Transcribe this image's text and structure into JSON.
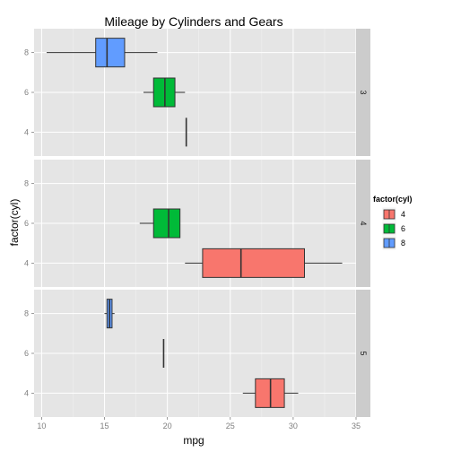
{
  "chart_data": {
    "type": "boxplot",
    "title": "Mileage by Cylinders and Gears",
    "xlabel": "mpg",
    "ylabel": "factor(cyl)",
    "xlim": [
      9.4,
      35
    ],
    "xticks": [
      10,
      15,
      20,
      25,
      30,
      35
    ],
    "categories": [
      "4",
      "6",
      "8"
    ],
    "grid": true,
    "legend": {
      "title": "factor(cyl)",
      "position": "right",
      "items": [
        {
          "label": "4",
          "color": "#F8766D"
        },
        {
          "label": "6",
          "color": "#00BA38"
        },
        {
          "label": "8",
          "color": "#619CFF"
        }
      ]
    },
    "facets": [
      {
        "label": "3",
        "boxes": [
          {
            "cyl": "8",
            "min": 10.4,
            "q1": 14.3,
            "median": 15.2,
            "q3": 16.6,
            "max": 19.2
          },
          {
            "cyl": "6",
            "min": 18.1,
            "q1": 18.9,
            "median": 19.8,
            "q3": 20.6,
            "max": 21.4
          },
          {
            "cyl": "4",
            "min": 21.5,
            "q1": 21.5,
            "median": 21.5,
            "q3": 21.5,
            "max": 21.5
          }
        ]
      },
      {
        "label": "4",
        "boxes": [
          {
            "cyl": "6",
            "min": 17.8,
            "q1": 18.9,
            "median": 20.1,
            "q3": 21.0,
            "max": 21.0
          },
          {
            "cyl": "4",
            "min": 21.4,
            "q1": 22.8,
            "median": 25.85,
            "q3": 30.9,
            "max": 33.9
          }
        ]
      },
      {
        "label": "5",
        "boxes": [
          {
            "cyl": "8",
            "min": 15.0,
            "q1": 15.2,
            "median": 15.4,
            "q3": 15.6,
            "max": 15.8
          },
          {
            "cyl": "6",
            "min": 19.7,
            "q1": 19.7,
            "median": 19.7,
            "q3": 19.7,
            "max": 19.7
          },
          {
            "cyl": "4",
            "min": 26.0,
            "q1": 27.0,
            "median": 28.2,
            "q3": 29.3,
            "max": 30.4
          }
        ]
      }
    ]
  }
}
